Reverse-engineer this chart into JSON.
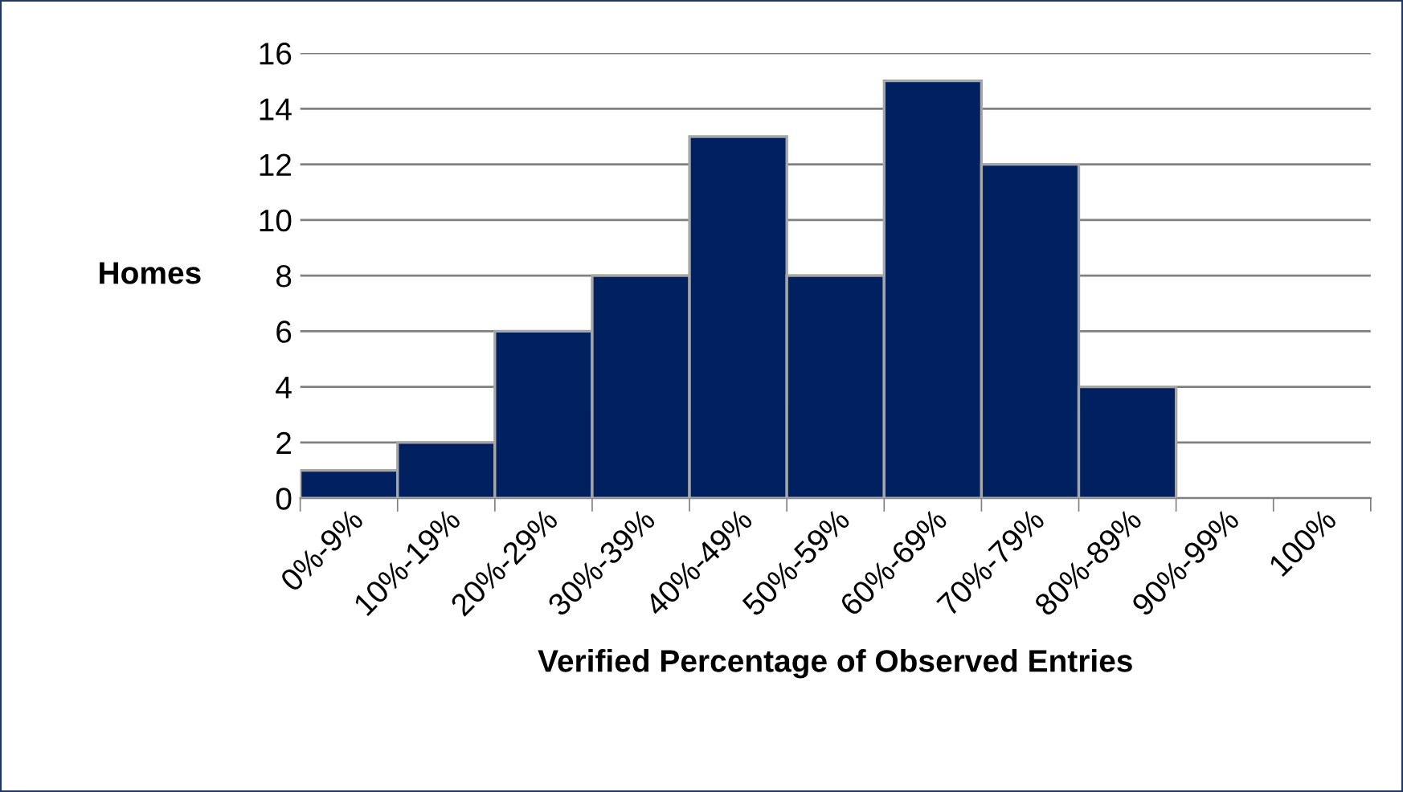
{
  "chart_data": {
    "type": "bar",
    "xlabel": "Verified Percentage of Observed Entries",
    "ylabel": "Homes",
    "categories": [
      "0%-9%",
      "10%-19%",
      "20%-29%",
      "30%-39%",
      "40%-49%",
      "50%-59%",
      "60%-69%",
      "70%-79%",
      "80%-89%",
      "90%-99%",
      "100%"
    ],
    "values": [
      1,
      2,
      6,
      8,
      13,
      8,
      15,
      12,
      4,
      0,
      0
    ],
    "color": "#002060",
    "ylim": [
      0,
      16
    ],
    "yticks": [
      0,
      2,
      4,
      6,
      8,
      10,
      12,
      14,
      16
    ],
    "grid": "y",
    "legend": false
  }
}
